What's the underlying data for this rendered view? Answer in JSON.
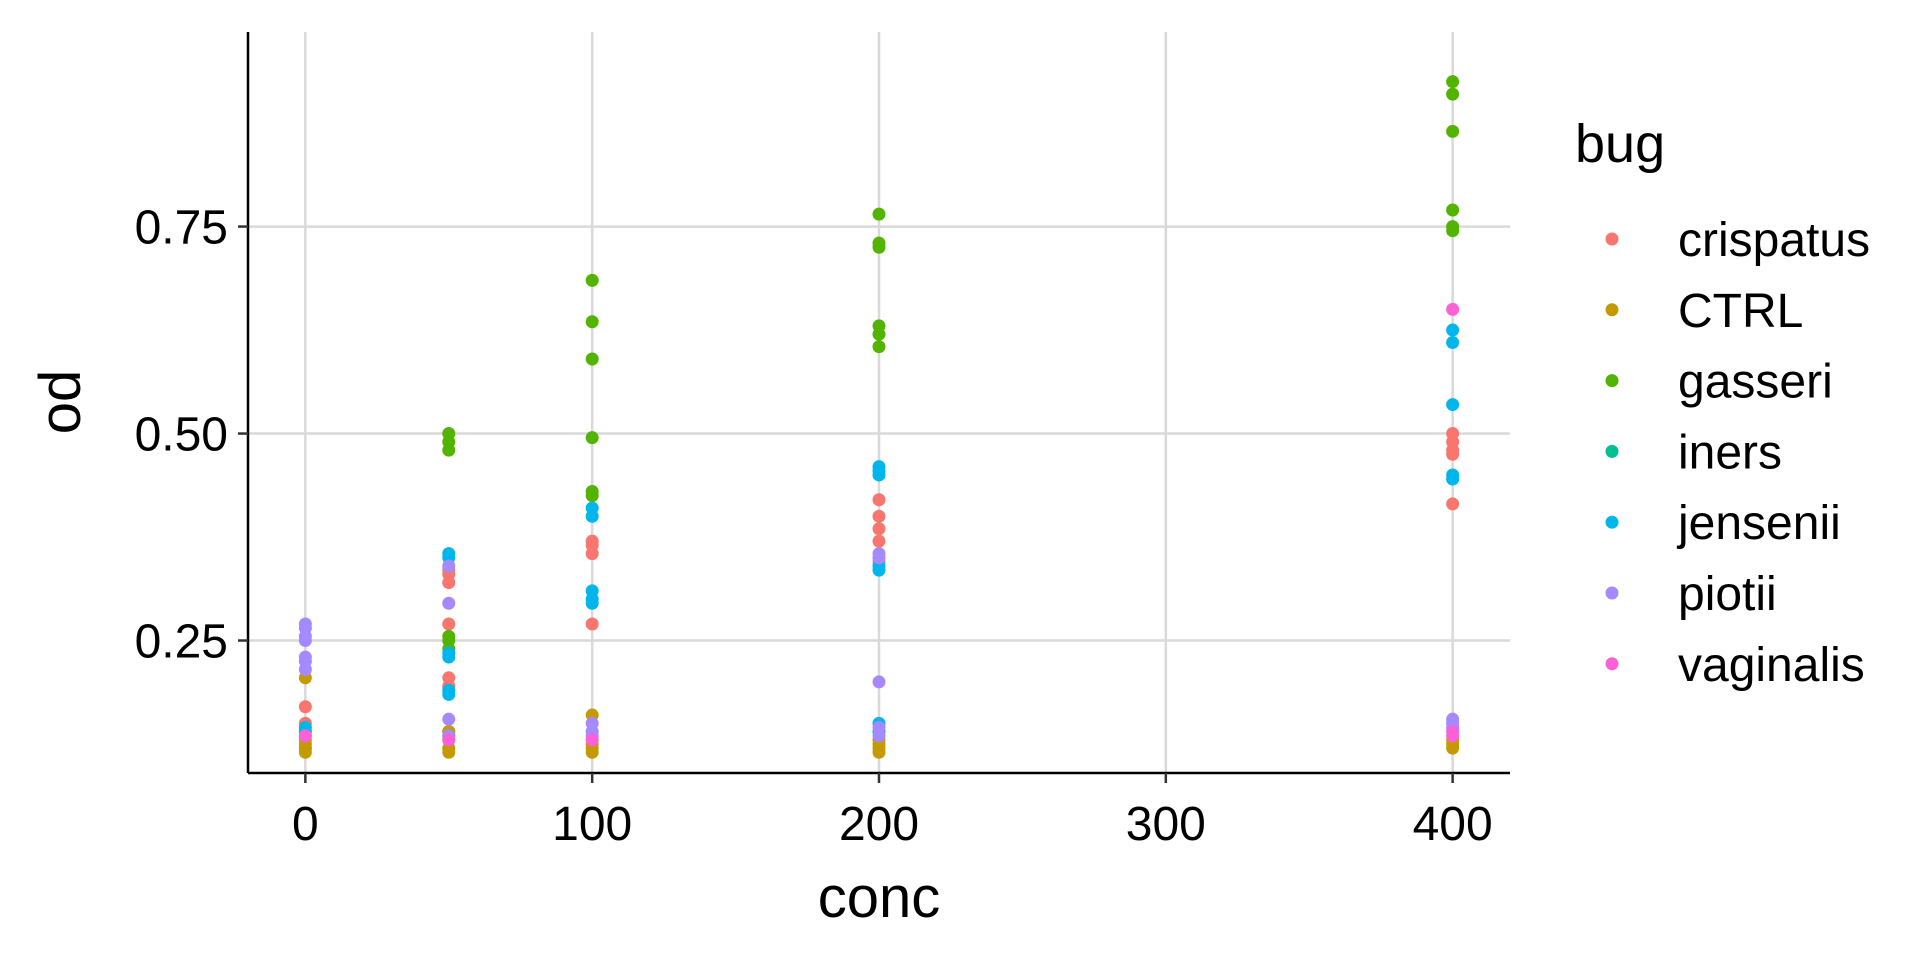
{
  "chart_data": {
    "type": "scatter",
    "xlabel": "conc",
    "ylabel": "od",
    "x_ticks": [
      "0",
      "100",
      "200",
      "300",
      "400"
    ],
    "x_tick_values": [
      0,
      100,
      200,
      300,
      400
    ],
    "y_ticks": [
      "0.25",
      "0.50",
      "0.75"
    ],
    "y_tick_values": [
      0.25,
      0.5,
      0.75
    ],
    "xlim": [
      -20,
      420
    ],
    "ylim": [
      0.09,
      0.985
    ],
    "grid": true,
    "legend": {
      "title": "bug",
      "position": "right",
      "items": [
        "crispatus",
        "CTRL",
        "gasseri",
        "iners",
        "jensenii",
        "piotii",
        "vaginalis"
      ]
    },
    "colors": {
      "crispatus": "#F8766D",
      "CTRL": "#C49A00",
      "gasseri": "#53B400",
      "iners": "#00C094",
      "jensenii": "#00B6EB",
      "piotii": "#A58AFF",
      "vaginalis": "#FB61D7"
    },
    "series": [
      {
        "name": "crispatus",
        "points": [
          [
            0,
            0.17
          ],
          [
            0,
            0.15
          ],
          [
            0,
            0.13
          ],
          [
            0,
            0.12
          ],
          [
            50,
            0.335
          ],
          [
            50,
            0.33
          ],
          [
            50,
            0.32
          ],
          [
            50,
            0.27
          ],
          [
            50,
            0.205
          ],
          [
            50,
            0.195
          ],
          [
            50,
            0.14
          ],
          [
            100,
            0.37
          ],
          [
            100,
            0.365
          ],
          [
            100,
            0.355
          ],
          [
            100,
            0.27
          ],
          [
            200,
            0.42
          ],
          [
            200,
            0.4
          ],
          [
            200,
            0.385
          ],
          [
            200,
            0.37
          ],
          [
            200,
            0.345
          ],
          [
            400,
            0.5
          ],
          [
            400,
            0.49
          ],
          [
            400,
            0.48
          ],
          [
            400,
            0.475
          ],
          [
            400,
            0.415
          ]
        ]
      },
      {
        "name": "CTRL",
        "points": [
          [
            0,
            0.205
          ],
          [
            0,
            0.125
          ],
          [
            0,
            0.12
          ],
          [
            0,
            0.115
          ],
          [
            50,
            0.14
          ],
          [
            50,
            0.13
          ],
          [
            50,
            0.12
          ],
          [
            50,
            0.115
          ],
          [
            100,
            0.16
          ],
          [
            100,
            0.13
          ],
          [
            100,
            0.125
          ],
          [
            100,
            0.12
          ],
          [
            100,
            0.115
          ],
          [
            200,
            0.13
          ],
          [
            200,
            0.125
          ],
          [
            200,
            0.12
          ],
          [
            200,
            0.115
          ],
          [
            400,
            0.13
          ],
          [
            400,
            0.125
          ],
          [
            400,
            0.12
          ]
        ]
      },
      {
        "name": "gasseri",
        "points": [
          [
            50,
            0.5
          ],
          [
            50,
            0.49
          ],
          [
            50,
            0.48
          ],
          [
            50,
            0.255
          ],
          [
            50,
            0.25
          ],
          [
            50,
            0.24
          ],
          [
            100,
            0.685
          ],
          [
            100,
            0.635
          ],
          [
            100,
            0.59
          ],
          [
            100,
            0.495
          ],
          [
            100,
            0.43
          ],
          [
            100,
            0.425
          ],
          [
            200,
            0.765
          ],
          [
            200,
            0.73
          ],
          [
            200,
            0.725
          ],
          [
            200,
            0.63
          ],
          [
            200,
            0.62
          ],
          [
            200,
            0.605
          ],
          [
            400,
            0.925
          ],
          [
            400,
            0.91
          ],
          [
            400,
            0.865
          ],
          [
            400,
            0.77
          ],
          [
            400,
            0.75
          ],
          [
            400,
            0.745
          ]
        ]
      },
      {
        "name": "iners",
        "points": [
          [
            0,
            0.14
          ],
          [
            50,
            0.135
          ],
          [
            200,
            0.14
          ]
        ]
      },
      {
        "name": "jensenii",
        "points": [
          [
            0,
            0.145
          ],
          [
            0,
            0.135
          ],
          [
            50,
            0.355
          ],
          [
            50,
            0.35
          ],
          [
            50,
            0.235
          ],
          [
            50,
            0.23
          ],
          [
            50,
            0.19
          ],
          [
            50,
            0.185
          ],
          [
            100,
            0.41
          ],
          [
            100,
            0.4
          ],
          [
            100,
            0.31
          ],
          [
            100,
            0.3
          ],
          [
            100,
            0.295
          ],
          [
            200,
            0.46
          ],
          [
            200,
            0.455
          ],
          [
            200,
            0.45
          ],
          [
            200,
            0.34
          ],
          [
            200,
            0.335
          ],
          [
            200,
            0.15
          ],
          [
            400,
            0.625
          ],
          [
            400,
            0.61
          ],
          [
            400,
            0.535
          ],
          [
            400,
            0.45
          ],
          [
            400,
            0.445
          ]
        ]
      },
      {
        "name": "piotii",
        "points": [
          [
            0,
            0.27
          ],
          [
            0,
            0.265
          ],
          [
            0,
            0.255
          ],
          [
            0,
            0.25
          ],
          [
            0,
            0.23
          ],
          [
            0,
            0.225
          ],
          [
            0,
            0.215
          ],
          [
            50,
            0.34
          ],
          [
            50,
            0.295
          ],
          [
            50,
            0.155
          ],
          [
            50,
            0.135
          ],
          [
            100,
            0.15
          ],
          [
            100,
            0.14
          ],
          [
            100,
            0.135
          ],
          [
            200,
            0.355
          ],
          [
            200,
            0.35
          ],
          [
            200,
            0.2
          ],
          [
            200,
            0.145
          ],
          [
            200,
            0.135
          ],
          [
            400,
            0.155
          ],
          [
            400,
            0.15
          ],
          [
            400,
            0.145
          ]
        ]
      },
      {
        "name": "vaginalis",
        "points": [
          [
            0,
            0.135
          ],
          [
            50,
            0.13
          ],
          [
            100,
            0.13
          ],
          [
            400,
            0.65
          ],
          [
            400,
            0.14
          ],
          [
            400,
            0.135
          ]
        ]
      }
    ]
  }
}
